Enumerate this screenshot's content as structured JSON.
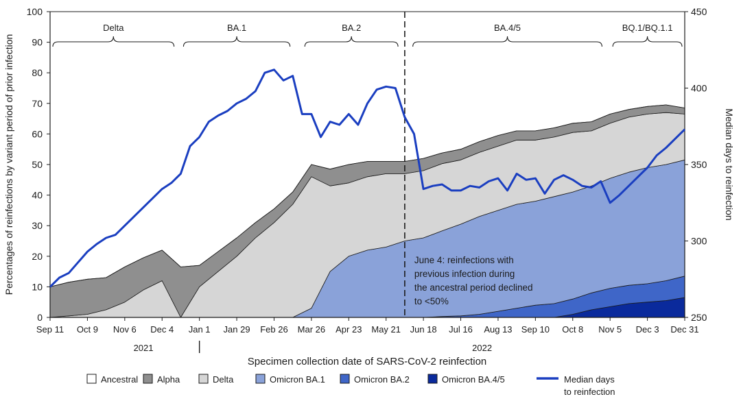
{
  "chart_data": {
    "type": "area",
    "xlabel": "Specimen collection date of SARS-CoV-2  reinfection",
    "ylabel": "Percentages of reinfections by variant period of prior infection",
    "y2label": "Median days to reinfection",
    "ylim": [
      0,
      100
    ],
    "y2lim": [
      250,
      450
    ],
    "yticks": [
      "0",
      "10",
      "20",
      "30",
      "40",
      "50",
      "60",
      "70",
      "80",
      "90",
      "100"
    ],
    "y2ticks": [
      "250",
      "300",
      "350",
      "400",
      "450"
    ],
    "x_range": [
      "2021-09-11",
      "2022-12-31"
    ],
    "xticks": [
      {
        "label": "Sep 11",
        "date": "2021-09-11"
      },
      {
        "label": "Oct 9",
        "date": "2021-10-09"
      },
      {
        "label": "Nov 6",
        "date": "2021-11-06"
      },
      {
        "label": "Dec 4",
        "date": "2021-12-04"
      },
      {
        "label": "Jan 1",
        "date": "2022-01-01"
      },
      {
        "label": "Jan 29",
        "date": "2022-01-29"
      },
      {
        "label": "Feb 26",
        "date": "2022-02-26"
      },
      {
        "label": "Mar 26",
        "date": "2022-03-26"
      },
      {
        "label": "Apr 23",
        "date": "2022-04-23"
      },
      {
        "label": "May 21",
        "date": "2022-05-21"
      },
      {
        "label": "Jun 18",
        "date": "2022-06-18"
      },
      {
        "label": "Jul 16",
        "date": "2022-07-16"
      },
      {
        "label": "Aug 13",
        "date": "2022-08-13"
      },
      {
        "label": "Sep 10",
        "date": "2022-09-10"
      },
      {
        "label": "Oct 8",
        "date": "2022-10-08"
      },
      {
        "label": "Nov 5",
        "date": "2022-11-05"
      },
      {
        "label": "Dec 3",
        "date": "2022-12-03"
      },
      {
        "label": "Dec 31",
        "date": "2022-12-31"
      }
    ],
    "year_labels": [
      {
        "label": "2021",
        "date": "2021-11-20"
      },
      {
        "label": "2022",
        "date": "2022-08-01"
      }
    ],
    "year_divider_date": "2022-01-01",
    "x": [
      "2021-09-11",
      "2021-09-25",
      "2021-10-09",
      "2021-10-23",
      "2021-11-06",
      "2021-11-20",
      "2021-12-04",
      "2021-12-18",
      "2022-01-01",
      "2022-01-15",
      "2022-01-29",
      "2022-02-12",
      "2022-02-26",
      "2022-03-12",
      "2022-03-26",
      "2022-04-09",
      "2022-04-23",
      "2022-05-07",
      "2022-05-21",
      "2022-06-04",
      "2022-06-18",
      "2022-07-02",
      "2022-07-16",
      "2022-07-30",
      "2022-08-13",
      "2022-08-27",
      "2022-09-10",
      "2022-09-24",
      "2022-10-08",
      "2022-10-22",
      "2022-11-05",
      "2022-11-19",
      "2022-12-03",
      "2022-12-17",
      "2022-12-31"
    ],
    "series": [
      {
        "name": "Omicron BA.4/5",
        "color": "#0a2a9c",
        "values": [
          0,
          0,
          0,
          0,
          0,
          0,
          0,
          0,
          0,
          0,
          0,
          0,
          0,
          0,
          0,
          0,
          0,
          0,
          0,
          0,
          0,
          0,
          0,
          0,
          0,
          0,
          0,
          0,
          1,
          2.5,
          3.5,
          4.5,
          5,
          5.5,
          6.5
        ]
      },
      {
        "name": "Omicron BA.2",
        "color": "#3f66c8",
        "values": [
          0,
          0,
          0,
          0,
          0,
          0,
          0,
          0,
          0,
          0,
          0,
          0,
          0,
          0,
          0,
          0,
          0,
          0,
          0,
          0,
          0,
          0.3,
          0.5,
          1,
          2,
          3,
          4,
          4.5,
          5,
          5.5,
          6,
          6,
          6,
          6.5,
          7
        ]
      },
      {
        "name": "Omicron BA.1",
        "color": "#8aa2d9",
        "values": [
          0,
          0,
          0,
          0,
          0,
          0,
          0,
          0,
          0,
          0,
          0,
          0,
          0,
          0,
          3,
          15,
          20,
          22,
          23,
          25,
          26,
          28,
          30,
          32,
          33,
          34,
          34,
          35,
          35,
          35,
          36,
          37,
          38,
          38,
          38
        ]
      },
      {
        "name": "Delta",
        "color": "#d6d6d6",
        "values": [
          0,
          0.5,
          1,
          2.5,
          5,
          9,
          12,
          0,
          10,
          15,
          20,
          26,
          31,
          37,
          43,
          28,
          24,
          24,
          24,
          22,
          22,
          22,
          21,
          21,
          21,
          21,
          20,
          19.5,
          19.5,
          18,
          18,
          18,
          17.5,
          17,
          15
        ]
      },
      {
        "name": "Alpha",
        "color": "#8f8f8f",
        "values": [
          10,
          11,
          11.5,
          10.5,
          11.5,
          10.5,
          10,
          16.5,
          7,
          6.5,
          6,
          5,
          4.5,
          4,
          4,
          5.5,
          6,
          5,
          4,
          4,
          4,
          3.5,
          3.5,
          3.5,
          3.5,
          3,
          3,
          3,
          3,
          3,
          3,
          2.5,
          2.5,
          2.5,
          2
        ]
      },
      {
        "name": "Ancestral",
        "color": "#ffffff",
        "values": [
          0,
          0,
          0,
          0,
          0,
          0,
          0,
          0,
          0,
          0,
          0,
          0,
          0,
          0,
          0,
          0,
          0,
          0,
          0,
          0,
          0,
          0,
          0,
          0,
          0,
          0,
          0,
          0,
          0,
          0,
          0,
          0,
          0,
          0,
          0
        ]
      }
    ],
    "median_line": {
      "name": "Median days to reinfection",
      "color": "#1a3ec0",
      "x": [
        "2021-09-11",
        "2021-09-18",
        "2021-09-25",
        "2021-10-02",
        "2021-10-09",
        "2021-10-16",
        "2021-10-23",
        "2021-10-30",
        "2021-11-06",
        "2021-11-13",
        "2021-11-20",
        "2021-11-27",
        "2021-12-04",
        "2021-12-11",
        "2021-12-18",
        "2021-12-25",
        "2022-01-01",
        "2022-01-08",
        "2022-01-15",
        "2022-01-22",
        "2022-01-29",
        "2022-02-05",
        "2022-02-12",
        "2022-02-19",
        "2022-02-26",
        "2022-03-05",
        "2022-03-12",
        "2022-03-19",
        "2022-03-26",
        "2022-04-02",
        "2022-04-09",
        "2022-04-16",
        "2022-04-23",
        "2022-04-30",
        "2022-05-07",
        "2022-05-14",
        "2022-05-21",
        "2022-05-28",
        "2022-06-04",
        "2022-06-11",
        "2022-06-18",
        "2022-06-25",
        "2022-07-02",
        "2022-07-09",
        "2022-07-16",
        "2022-07-23",
        "2022-07-30",
        "2022-08-06",
        "2022-08-13",
        "2022-08-20",
        "2022-08-27",
        "2022-09-03",
        "2022-09-10",
        "2022-09-17",
        "2022-09-24",
        "2022-10-01",
        "2022-10-08",
        "2022-10-15",
        "2022-10-22",
        "2022-10-29",
        "2022-11-05",
        "2022-11-12",
        "2022-11-19",
        "2022-11-26",
        "2022-12-03",
        "2022-12-10",
        "2022-12-17",
        "2022-12-24",
        "2022-12-31"
      ],
      "values": [
        270,
        276,
        279,
        286,
        293,
        298,
        302,
        304,
        310,
        316,
        322,
        328,
        334,
        338,
        344,
        362,
        368,
        378,
        382,
        385,
        390,
        393,
        398,
        410,
        412,
        405,
        408,
        383,
        383,
        368,
        378,
        376,
        383,
        376,
        390,
        399,
        401,
        400,
        381,
        370,
        334,
        336,
        337,
        333,
        333,
        336,
        335,
        339,
        341,
        333,
        344,
        340,
        341,
        331,
        340,
        343,
        340,
        336,
        335,
        339,
        325,
        330,
        336,
        342,
        348,
        356,
        361,
        367,
        373
      ]
    },
    "periods": [
      {
        "label": "Delta",
        "start": "2021-09-11",
        "end": "2021-12-15"
      },
      {
        "label": "BA.1",
        "start": "2021-12-18",
        "end": "2022-03-12"
      },
      {
        "label": "BA.2",
        "start": "2022-03-19",
        "end": "2022-06-01"
      },
      {
        "label": "BA.4/5",
        "start": "2022-06-08",
        "end": "2022-11-01"
      },
      {
        "label": "BQ.1/BQ.1.1",
        "start": "2022-11-05",
        "end": "2022-12-31"
      }
    ],
    "event": {
      "date": "2022-06-04",
      "annotation": [
        "June 4: reinfections with",
        "previous infection during",
        "the ancestral period declined",
        "to <50%"
      ]
    },
    "legend": [
      {
        "label": "Ancestral",
        "color": "#ffffff",
        "kind": "box"
      },
      {
        "label": "Alpha",
        "color": "#8f8f8f",
        "kind": "box"
      },
      {
        "label": "Delta",
        "color": "#d6d6d6",
        "kind": "box"
      },
      {
        "label": "Omicron BA.1",
        "color": "#8aa2d9",
        "kind": "box"
      },
      {
        "label": "Omicron BA.2",
        "color": "#3f66c8",
        "kind": "box"
      },
      {
        "label": "Omicron BA.4/5",
        "color": "#0a2a9c",
        "kind": "box"
      },
      {
        "label": "Median days",
        "label2": "to reinfection",
        "color": "#1a3ec0",
        "kind": "line"
      }
    ]
  }
}
